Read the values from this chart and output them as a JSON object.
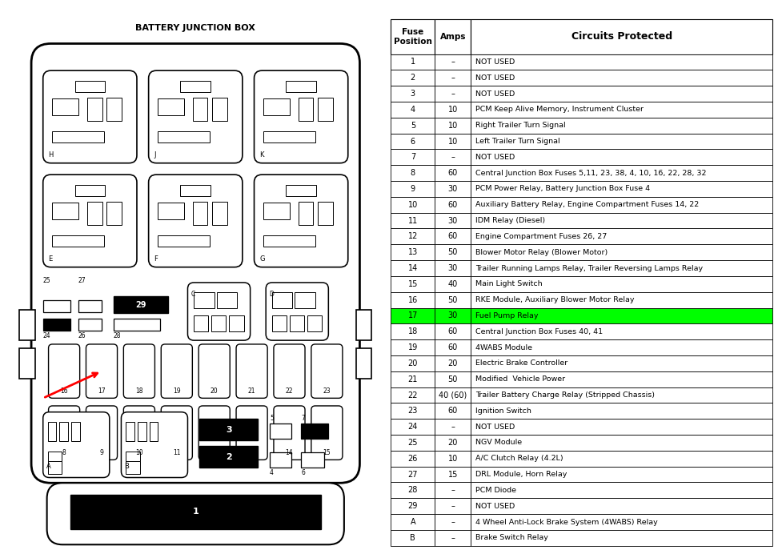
{
  "title": "BATTERY JUNCTION BOX",
  "bg_color": "#ffffff",
  "table_data": [
    [
      "1",
      "–",
      "NOT USED"
    ],
    [
      "2",
      "–",
      "NOT USED"
    ],
    [
      "3",
      "–",
      "NOT USED"
    ],
    [
      "4",
      "10",
      "PCM Keep Alive Memory, Instrument Cluster"
    ],
    [
      "5",
      "10",
      "Right Trailer Turn Signal"
    ],
    [
      "6",
      "10",
      "Left Trailer Turn Signal"
    ],
    [
      "7",
      "–",
      "NOT USED"
    ],
    [
      "8",
      "60",
      "Central Junction Box Fuses 5,11, 23, 38, 4, 10, 16, 22, 28, 32"
    ],
    [
      "9",
      "30",
      "PCM Power Relay, Battery Junction Box Fuse 4"
    ],
    [
      "10",
      "60",
      "Auxiliary Battery Relay, Engine Compartment Fuses 14, 22"
    ],
    [
      "11",
      "30",
      "IDM Relay (Diesel)"
    ],
    [
      "12",
      "60",
      "Engine Compartment Fuses 26, 27"
    ],
    [
      "13",
      "50",
      "Blower Motor Relay (Blower Motor)"
    ],
    [
      "14",
      "30",
      "Trailer Running Lamps Relay, Trailer Reversing Lamps Relay"
    ],
    [
      "15",
      "40",
      "Main Light Switch"
    ],
    [
      "16",
      "50",
      "RKE Module, Auxiliary Blower Motor Relay"
    ],
    [
      "17",
      "30",
      "Fuel Pump Relay"
    ],
    [
      "18",
      "60",
      "Central Junction Box Fuses 40, 41"
    ],
    [
      "19",
      "60",
      "4WABS Module"
    ],
    [
      "20",
      "20",
      "Electric Brake Controller"
    ],
    [
      "21",
      "50",
      "Modified  Vehicle Power"
    ],
    [
      "22",
      "40 (60)",
      "Trailer Battery Charge Relay (Stripped Chassis)"
    ],
    [
      "23",
      "60",
      "Ignition Switch"
    ],
    [
      "24",
      "–",
      "NOT USED"
    ],
    [
      "25",
      "20",
      "NGV Module"
    ],
    [
      "26",
      "10",
      "A/C Clutch Relay (4.2L)"
    ],
    [
      "27",
      "15",
      "DRL Module, Horn Relay"
    ],
    [
      "28",
      "–",
      "PCM Diode"
    ],
    [
      "29",
      "–",
      "NOT USED"
    ],
    [
      "A",
      "–",
      "4 Wheel Anti-Lock Brake System (4WABS) Relay"
    ],
    [
      "B",
      "–",
      "Brake Switch Relay"
    ]
  ],
  "highlight_row": 16,
  "highlight_color": "#00ff00",
  "col_headers": [
    "Fuse\nPosition",
    "Amps",
    "Circuits Protected"
  ]
}
